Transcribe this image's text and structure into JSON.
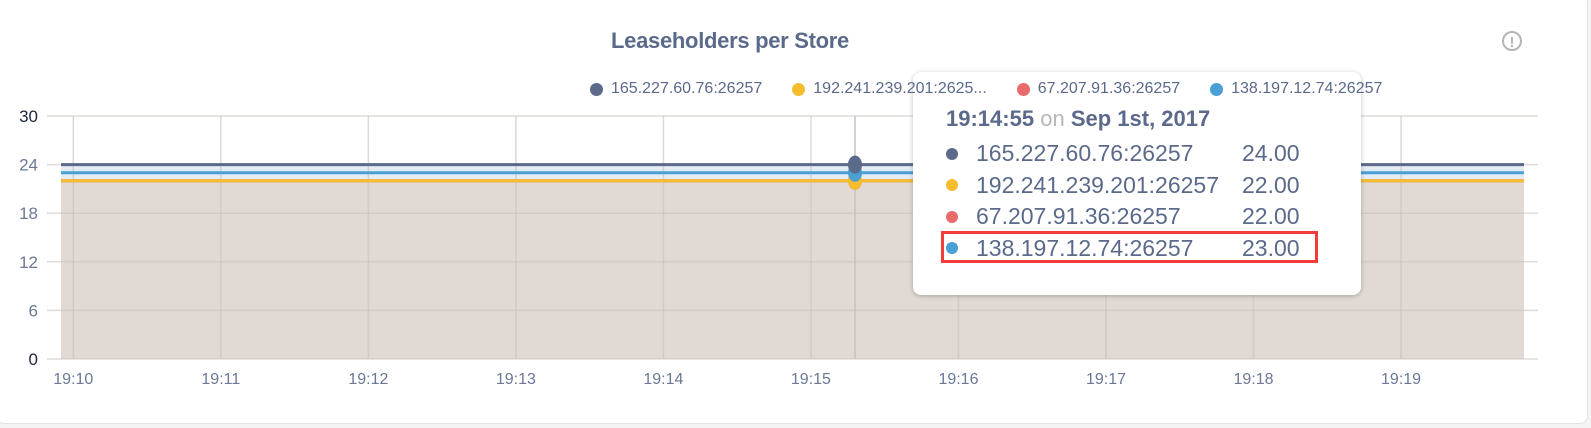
{
  "chart_data": {
    "type": "area",
    "title": "Leaseholders per Store",
    "x_ticks": [
      "19:10",
      "19:11",
      "19:12",
      "19:13",
      "19:14",
      "19:15",
      "19:16",
      "19:17",
      "19:18",
      "19:19"
    ],
    "y_ticks": [
      "0",
      "6",
      "12",
      "18",
      "24",
      "30"
    ],
    "ylim": [
      0,
      30
    ],
    "xlim": [
      "19:09:55",
      "19:19:50"
    ],
    "grid": true,
    "legend_placement": "top",
    "series": [
      {
        "name": "165.227.60.76:26257",
        "legend_label": "165.227.60.76:26257",
        "color": "#5b6a8a",
        "value": 24
      },
      {
        "name": "192.241.239.201:26257",
        "legend_label": "192.241.239.201:2625...",
        "color": "#f5bd2e",
        "value": 22
      },
      {
        "name": "67.207.91.36:26257",
        "legend_label": "67.207.91.36:26257",
        "color": "#e86a6a",
        "value": 22
      },
      {
        "name": "138.197.12.74:26257",
        "legend_label": "138.197.12.74:26257",
        "color": "#4a9fd5",
        "value": 23
      }
    ]
  },
  "tooltip": {
    "time": "19:14:55",
    "on": "on",
    "date": "Sep 1st, 2017",
    "rows": [
      {
        "name": "165.227.60.76:26257",
        "value": "24.00",
        "color": "#5b6a8a"
      },
      {
        "name": "192.241.239.201:26257",
        "value": "22.00",
        "color": "#f5bd2e"
      },
      {
        "name": "67.207.91.36:26257",
        "value": "22.00",
        "color": "#e86a6a"
      },
      {
        "name": "138.197.12.74:26257",
        "value": "23.00",
        "color": "#4a9fd5",
        "highlighted": true
      }
    ]
  },
  "info_icon": "info-icon",
  "colors": {
    "fill": "#e0d9d4",
    "band": "#e3edf3",
    "text": "#5b6a8a",
    "highlight": "#f23b3b"
  }
}
